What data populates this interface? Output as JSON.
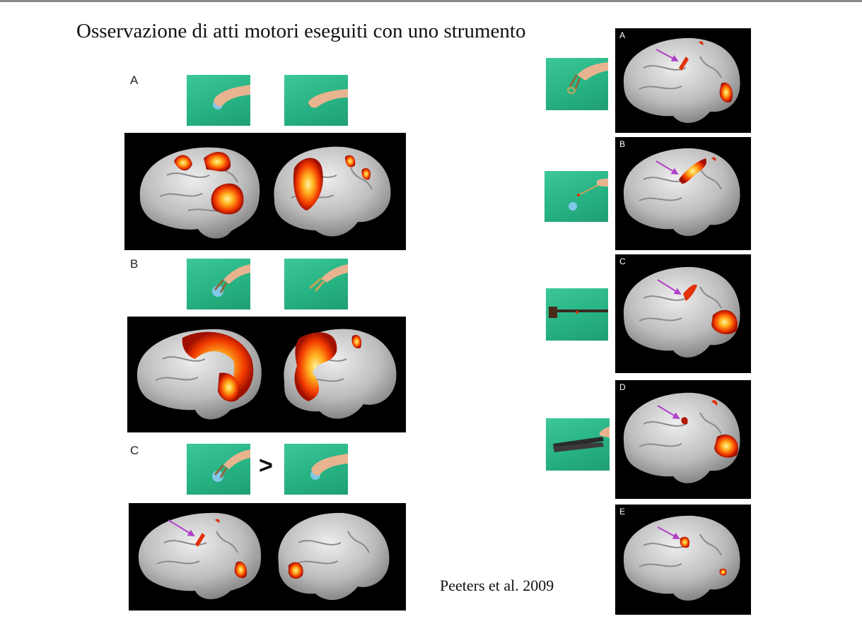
{
  "slide": {
    "title": "Osservazione di atti motori eseguiti con uno strumento",
    "citation": "Peeters et al. 2009",
    "comparison_symbol": ">"
  },
  "left_figure": {
    "panels": [
      {
        "label": "A"
      },
      {
        "label": "B"
      },
      {
        "label": "C"
      }
    ]
  },
  "right_figure": {
    "panels": [
      {
        "label": "A"
      },
      {
        "label": "B"
      },
      {
        "label": "C"
      },
      {
        "label": "D"
      },
      {
        "label": "E"
      }
    ]
  },
  "colors": {
    "stimulus_green": "#2bb585",
    "activation_hot": "#ff3b00",
    "activation_peak": "#ffe066",
    "arrow_purple": "#b040c8",
    "brain_gray": "#bdbdbd"
  }
}
